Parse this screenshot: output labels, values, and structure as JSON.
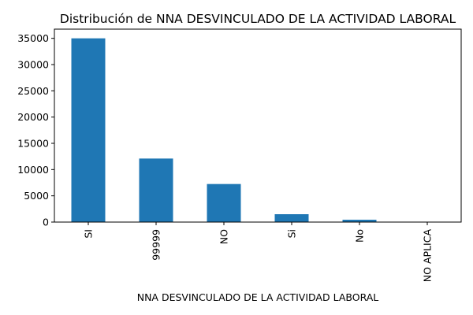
{
  "chart_data": {
    "type": "bar",
    "title": "Distribución de NNA DESVINCULADO DE LA ACTIVIDAD LABORAL",
    "xlabel": "NNA DESVINCULADO DE LA ACTIVIDAD LABORAL",
    "ylabel": "",
    "categories": [
      "SI",
      "99999",
      "NO",
      "Si",
      "No",
      "NO APLICA"
    ],
    "values": [
      35000,
      12100,
      7250,
      1500,
      450,
      40
    ],
    "ylim": [
      0,
      36750
    ],
    "yticks": [
      0,
      5000,
      10000,
      15000,
      20000,
      25000,
      30000,
      35000
    ],
    "bar_color": "#1f77b4",
    "grid": false,
    "legend": "none"
  }
}
